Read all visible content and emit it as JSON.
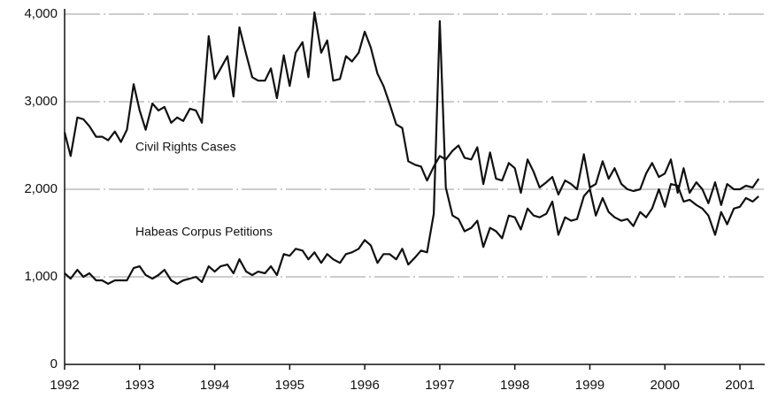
{
  "chart_data": {
    "type": "line",
    "x": [
      1992,
      1992.08,
      1992.17,
      1992.25,
      1992.33,
      1992.42,
      1992.5,
      1992.58,
      1992.67,
      1992.75,
      1992.83,
      1992.92,
      1993,
      1993.08,
      1993.17,
      1993.25,
      1993.33,
      1993.42,
      1993.5,
      1993.58,
      1993.67,
      1993.75,
      1993.83,
      1993.92,
      1994,
      1994.08,
      1994.17,
      1994.25,
      1994.33,
      1994.42,
      1994.5,
      1994.58,
      1994.67,
      1994.75,
      1994.83,
      1994.92,
      1995,
      1995.08,
      1995.17,
      1995.25,
      1995.33,
      1995.42,
      1995.5,
      1995.58,
      1995.67,
      1995.75,
      1995.83,
      1995.92,
      1996,
      1996.08,
      1996.17,
      1996.25,
      1996.33,
      1996.42,
      1996.5,
      1996.58,
      1996.67,
      1996.75,
      1996.83,
      1996.92,
      1997,
      1997.08,
      1997.17,
      1997.25,
      1997.33,
      1997.42,
      1997.5,
      1997.58,
      1997.67,
      1997.75,
      1997.83,
      1997.92,
      1998,
      1998.08,
      1998.17,
      1998.25,
      1998.33,
      1998.42,
      1998.5,
      1998.58,
      1998.67,
      1998.75,
      1998.83,
      1998.92,
      1999,
      1999.08,
      1999.17,
      1999.25,
      1999.33,
      1999.42,
      1999.5,
      1999.58,
      1999.67,
      1999.75,
      1999.83,
      1999.92,
      2000,
      2000.08,
      2000.17,
      2000.25,
      2000.33,
      2000.42,
      2000.5,
      2000.58,
      2000.67,
      2000.75,
      2000.83,
      2000.92,
      2001,
      2001.08,
      2001.17,
      2001.25
    ],
    "series": [
      {
        "name": "Civil Rights Cases",
        "color": "#111111",
        "values": [
          2650,
          2380,
          2820,
          2800,
          2720,
          2600,
          2600,
          2560,
          2660,
          2540,
          2680,
          3200,
          2900,
          2680,
          2980,
          2900,
          2940,
          2760,
          2820,
          2780,
          2920,
          2900,
          2760,
          3750,
          3260,
          3380,
          3520,
          3060,
          3850,
          3540,
          3280,
          3240,
          3240,
          3380,
          3040,
          3530,
          3180,
          3560,
          3680,
          3280,
          4020,
          3560,
          3700,
          3240,
          3260,
          3520,
          3460,
          3560,
          3800,
          3620,
          3320,
          3180,
          2980,
          2740,
          2700,
          2320,
          2280,
          2260,
          2100,
          2260,
          2380,
          2340,
          2440,
          2500,
          2360,
          2340,
          2480,
          2060,
          2420,
          2120,
          2100,
          2300,
          2240,
          1960,
          2340,
          2200,
          2020,
          2080,
          2140,
          1940,
          2100,
          2060,
          2000,
          2400,
          2020,
          2060,
          2320,
          2120,
          2240,
          2060,
          2000,
          1980,
          2000,
          2180,
          2300,
          2140,
          2180,
          2340,
          1960,
          2240,
          1960,
          2080,
          2000,
          1840,
          2080,
          1820,
          2060,
          2000,
          2000,
          2040,
          2020,
          2120
        ]
      },
      {
        "name": "Habeas Corpus Petitions",
        "color": "#111111",
        "values": [
          1040,
          980,
          1080,
          1000,
          1040,
          960,
          960,
          920,
          960,
          960,
          960,
          1100,
          1120,
          1020,
          980,
          1020,
          1080,
          960,
          920,
          960,
          980,
          1000,
          940,
          1120,
          1060,
          1120,
          1140,
          1040,
          1200,
          1060,
          1020,
          1060,
          1040,
          1120,
          1020,
          1260,
          1240,
          1320,
          1300,
          1200,
          1280,
          1160,
          1260,
          1200,
          1160,
          1260,
          1280,
          1320,
          1420,
          1360,
          1160,
          1260,
          1260,
          1200,
          1320,
          1140,
          1220,
          1300,
          1280,
          1720,
          3920,
          2020,
          1700,
          1660,
          1520,
          1560,
          1640,
          1340,
          1560,
          1520,
          1440,
          1700,
          1680,
          1540,
          1780,
          1700,
          1680,
          1720,
          1860,
          1480,
          1680,
          1640,
          1660,
          1920,
          2000,
          1700,
          1900,
          1740,
          1680,
          1640,
          1660,
          1580,
          1740,
          1680,
          1780,
          2000,
          1800,
          2060,
          2040,
          1860,
          1880,
          1820,
          1780,
          1700,
          1480,
          1740,
          1600,
          1780,
          1800,
          1900,
          1860,
          1920
        ]
      }
    ],
    "xlim": [
      1992,
      2001.33
    ],
    "xticks": [
      1992,
      1993,
      1994,
      1995,
      1996,
      1997,
      1998,
      1999,
      2000,
      2001
    ],
    "ylim": [
      0,
      4000
    ],
    "yticks": [
      0,
      {
        "value": 1000,
        "label": "1,000"
      },
      {
        "value": 2000,
        "label": "2,000"
      },
      {
        "value": 3000,
        "label": "3,000"
      },
      {
        "value": 4000,
        "label": "4,000"
      }
    ],
    "grid": true
  }
}
